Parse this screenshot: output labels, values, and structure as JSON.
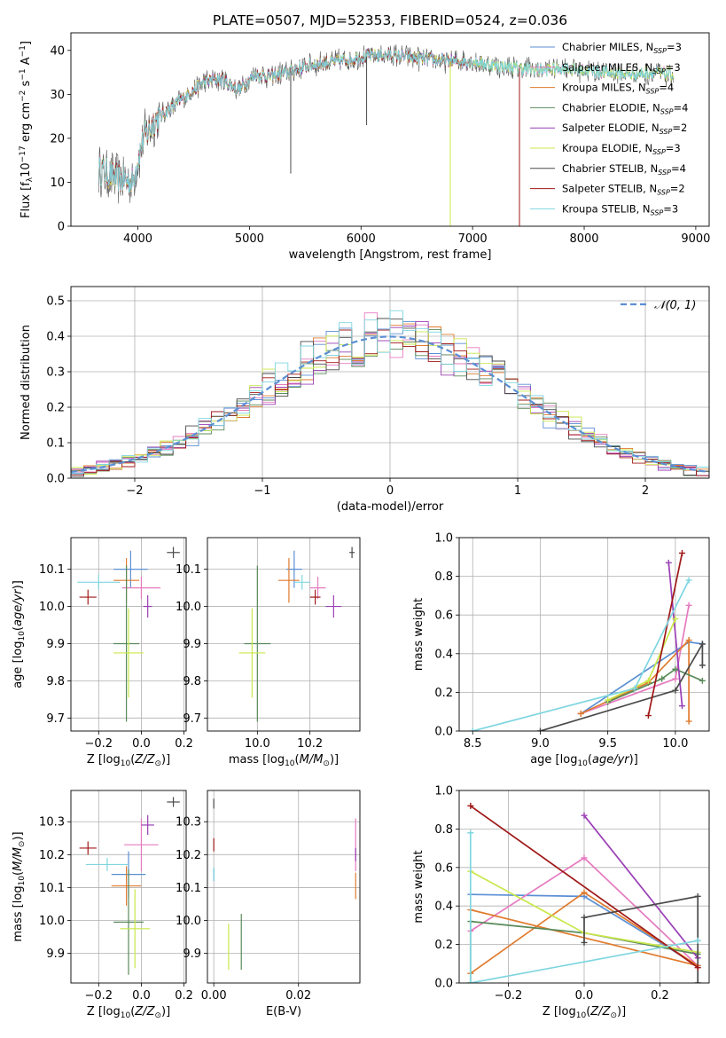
{
  "chart_data": [
    {
      "type": "line",
      "title": "PLATE=0507, MJD=52353, FIBERID=0524, z=0.036",
      "xlabel": "wavelength [Angstrom, rest frame]",
      "ylabel": "Flux [f_λ10^-17 erg cm^-2 s^-1 A^-1]",
      "xlim": [
        3400,
        9120
      ],
      "ylim": [
        0,
        44
      ],
      "xticks": [
        4000,
        5000,
        6000,
        7000,
        8000,
        9000
      ],
      "yticks": [
        0,
        10,
        20,
        30,
        40
      ],
      "grid": false,
      "legend_position": "top-right",
      "continuum": {
        "x": [
          3650,
          3800,
          3950,
          4050,
          4150,
          4300,
          4450,
          4600,
          4750,
          4900,
          5050,
          5200,
          5400,
          5600,
          5800,
          6000,
          6200,
          6400,
          6600,
          6800,
          7000,
          7200,
          7400,
          7600,
          7800,
          8000,
          8200,
          8400,
          8600,
          8800
        ],
        "y": [
          13,
          11,
          10,
          20,
          24,
          27,
          30,
          33,
          33.5,
          31,
          34.5,
          34,
          35.5,
          37,
          37.5,
          38.5,
          39,
          38.5,
          38,
          37.5,
          37.5,
          36.5,
          36,
          35.5,
          36,
          35.5,
          35,
          34.5,
          35,
          34.5
        ]
      },
      "series": [
        {
          "name": "Chabrier MILES, N_SSP=3",
          "legend_name": "Chabrier MILES, N",
          "legend_sub": "SSP",
          "legend_suffix": "=3",
          "color": "#5b8fd4"
        },
        {
          "name": "Salpeter MILES, N_SSP=3",
          "legend_name": "Salpeter MILES, N",
          "legend_sub": "SSP",
          "legend_suffix": "=3",
          "color": "#e57bc0"
        },
        {
          "name": "Kroupa MILES, N_SSP=4",
          "legend_name": "Kroupa MILES, N",
          "legend_sub": "SSP",
          "legend_suffix": "=4",
          "color": "#e07b2e"
        },
        {
          "name": "Chabrier ELODIE, N_SSP=4",
          "legend_name": "Chabrier ELODIE, N",
          "legend_sub": "SSP",
          "legend_suffix": "=4",
          "color": "#5a8a5a"
        },
        {
          "name": "Salpeter ELODIE, N_SSP=2",
          "legend_name": "Salpeter ELODIE, N",
          "legend_sub": "SSP",
          "legend_suffix": "=2",
          "color": "#9a3fb5"
        },
        {
          "name": "Kroupa ELODIE, N_SSP=3",
          "legend_name": "Kroupa ELODIE, N",
          "legend_sub": "SSP",
          "legend_suffix": "=3",
          "color": "#c9e84a"
        },
        {
          "name": "Chabrier STELIB, N_SSP=4",
          "legend_name": "Chabrier STELIB, N",
          "legend_sub": "SSP",
          "legend_suffix": "=4",
          "color": "#4a4a4a"
        },
        {
          "name": "Salpeter STELIB, N_SSP=2",
          "legend_name": "Salpeter STELIB, N",
          "legend_sub": "SSP",
          "legend_suffix": "=2",
          "color": "#a01818"
        },
        {
          "name": "Kroupa STELIB, N_SSP=3",
          "legend_name": "Kroupa STELIB, N",
          "legend_sub": "SSP",
          "legend_suffix": "=3",
          "color": "#7fd6e0"
        }
      ],
      "drops": [
        {
          "series": "Kroupa ELODIE, N_SSP=3",
          "x": 6800,
          "y": 0
        },
        {
          "series": "Salpeter STELIB, N_SSP=2",
          "x": 7420,
          "y": 0
        },
        {
          "series": "Chabrier STELIB, N_SSP=4",
          "x": 5370,
          "y": 12
        },
        {
          "series": "Chabrier STELIB, N_SSP=4",
          "x": 6050,
          "y": 23
        }
      ]
    },
    {
      "type": "histogram",
      "xlabel": "(data-model)/error",
      "ylabel": "Normed distribution",
      "xlim": [
        -2.5,
        2.5
      ],
      "ylim": [
        0,
        0.54
      ],
      "xticks": [
        -2,
        -1,
        0,
        1,
        2
      ],
      "yticks": [
        0.0,
        0.1,
        0.2,
        0.3,
        0.4,
        0.5
      ],
      "grid": true,
      "legend_position": "top-right",
      "bin_width": 0.1,
      "reference": {
        "name": "𝒩(0, 1)",
        "color": "#5b8fd4",
        "style": "dashed"
      }
    },
    {
      "type": "scatter",
      "xlabel": "Z [log10(Z/Z⊙)]",
      "ylabel": "age [log10(age/yr)]",
      "xlim": [
        -0.33,
        0.21
      ],
      "ylim": [
        9.665,
        10.185
      ],
      "xticks": [
        -0.2,
        0.0,
        0.2
      ],
      "yticks": [
        9.7,
        9.8,
        9.9,
        10.0,
        10.1
      ],
      "grid": true,
      "points": [
        {
          "series": "Chabrier MILES, N_SSP=3",
          "x": -0.05,
          "y": 10.1,
          "xerr": 0.08,
          "yerr": 0.05
        },
        {
          "series": "Salpeter MILES, N_SSP=3",
          "x": 0.0,
          "y": 10.05,
          "xerr": 0.09,
          "yerr": 0.03
        },
        {
          "series": "Kroupa MILES, N_SSP=4",
          "x": -0.07,
          "y": 10.07,
          "xerr": 0.06,
          "yerr": 0.06
        },
        {
          "series": "Chabrier ELODIE, N_SSP=4",
          "x": -0.07,
          "y": 9.9,
          "xerr": 0.06,
          "yerr": 0.21
        },
        {
          "series": "Salpeter ELODIE, N_SSP=2",
          "x": 0.03,
          "y": 10.0,
          "xerr": 0.02,
          "yerr": 0.03
        },
        {
          "series": "Kroupa ELODIE, N_SSP=3",
          "x": -0.06,
          "y": 9.875,
          "xerr": 0.07,
          "yerr": 0.12
        },
        {
          "series": "Chabrier STELIB, N_SSP=4",
          "x": 0.15,
          "y": 10.145,
          "xerr": 0.03,
          "yerr": 0.015
        },
        {
          "series": "Salpeter STELIB, N_SSP=2",
          "x": -0.25,
          "y": 10.025,
          "xerr": 0.04,
          "yerr": 0.02
        },
        {
          "series": "Kroupa STELIB, N_SSP=3",
          "x": -0.2,
          "y": 10.065,
          "xerr": 0.1,
          "yerr": 0.02
        }
      ]
    },
    {
      "type": "scatter",
      "xlabel": "mass [log10(M/M⊙)]",
      "ylabel": "",
      "xlim": [
        9.81,
        10.39
      ],
      "ylim": [
        9.665,
        10.185
      ],
      "xticks": [
        10.0,
        10.2
      ],
      "yticks": [
        9.7,
        9.8,
        9.9,
        10.0,
        10.1
      ],
      "grid": true,
      "points": [
        {
          "series": "Chabrier MILES, N_SSP=3",
          "x": 10.14,
          "y": 10.1,
          "xerr": 0.03,
          "yerr": 0.05
        },
        {
          "series": "Salpeter MILES, N_SSP=3",
          "x": 10.23,
          "y": 10.05,
          "xerr": 0.03,
          "yerr": 0.03
        },
        {
          "series": "Kroupa MILES, N_SSP=4",
          "x": 10.12,
          "y": 10.07,
          "xerr": 0.04,
          "yerr": 0.06
        },
        {
          "series": "Chabrier ELODIE, N_SSP=4",
          "x": 10.0,
          "y": 9.9,
          "xerr": 0.05,
          "yerr": 0.21
        },
        {
          "series": "Salpeter ELODIE, N_SSP=2",
          "x": 10.29,
          "y": 10.0,
          "xerr": 0.03,
          "yerr": 0.03
        },
        {
          "series": "Kroupa ELODIE, N_SSP=3",
          "x": 9.98,
          "y": 9.875,
          "xerr": 0.05,
          "yerr": 0.12
        },
        {
          "series": "Chabrier STELIB, N_SSP=4",
          "x": 10.36,
          "y": 10.145,
          "xerr": 0.01,
          "yerr": 0.015
        },
        {
          "series": "Salpeter STELIB, N_SSP=2",
          "x": 10.22,
          "y": 10.025,
          "xerr": 0.02,
          "yerr": 0.02
        },
        {
          "series": "Kroupa STELIB, N_SSP=3",
          "x": 10.17,
          "y": 10.065,
          "xerr": 0.03,
          "yerr": 0.02
        }
      ]
    },
    {
      "type": "line",
      "xlabel": "age [log10(age/yr)]",
      "ylabel": "mass weight",
      "xlim": [
        8.4,
        10.25
      ],
      "ylim": [
        0,
        1
      ],
      "xticks": [
        8.5,
        9.0,
        9.5,
        10.0
      ],
      "yticks": [
        0.0,
        0.2,
        0.4,
        0.6,
        0.8,
        1.0
      ],
      "grid": true,
      "series": [
        {
          "name": "Chabrier MILES, N_SSP=3",
          "x": [
            9.3,
            10.1,
            10.2
          ],
          "y": [
            0.09,
            0.46,
            0.45
          ]
        },
        {
          "name": "Salpeter MILES, N_SSP=3",
          "x": [
            9.3,
            10.0,
            10.1
          ],
          "y": [
            0.09,
            0.27,
            0.65
          ]
        },
        {
          "name": "Kroupa MILES, N_SSP=4",
          "x": [
            9.3,
            9.8,
            10.1,
            10.1
          ],
          "y": [
            0.09,
            0.25,
            0.47,
            0.05
          ]
        },
        {
          "name": "Chabrier ELODIE, N_SSP=4",
          "x": [
            9.5,
            9.9,
            10.0,
            10.2
          ],
          "y": [
            0.15,
            0.27,
            0.32,
            0.26
          ]
        },
        {
          "name": "Salpeter ELODIE, N_SSP=2",
          "x": [
            9.95,
            10.05
          ],
          "y": [
            0.87,
            0.13
          ]
        },
        {
          "name": "Kroupa ELODIE, N_SSP=3",
          "x": [
            9.5,
            9.8,
            10.0
          ],
          "y": [
            0.16,
            0.26,
            0.58
          ]
        },
        {
          "name": "Chabrier STELIB, N_SSP=4",
          "x": [
            9.0,
            10.0,
            10.2,
            10.2
          ],
          "y": [
            0.0,
            0.21,
            0.45,
            0.34
          ]
        },
        {
          "name": "Salpeter STELIB, N_SSP=2",
          "x": [
            9.8,
            10.05
          ],
          "y": [
            0.08,
            0.92
          ]
        },
        {
          "name": "Kroupa STELIB, N_SSP=3",
          "x": [
            8.5,
            9.7,
            10.1
          ],
          "y": [
            0.0,
            0.22,
            0.78
          ]
        }
      ]
    },
    {
      "type": "scatter",
      "xlabel": "Z [log10(Z/Z⊙)]",
      "ylabel": "mass [log10(M/M⊙)]",
      "xlim": [
        -0.33,
        0.21
      ],
      "ylim": [
        9.81,
        10.395
      ],
      "xticks": [
        -0.2,
        0.0,
        0.2
      ],
      "yticks": [
        9.9,
        10.0,
        10.1,
        10.2,
        10.3
      ],
      "grid": true,
      "points": [
        {
          "series": "Chabrier MILES, N_SSP=3",
          "x": -0.06,
          "y": 10.14,
          "xerr": 0.08,
          "yerr": 0.07
        },
        {
          "series": "Salpeter MILES, N_SSP=3",
          "x": 0.0,
          "y": 10.23,
          "xerr": 0.08,
          "yerr": 0.08
        },
        {
          "series": "Kroupa MILES, N_SSP=4",
          "x": -0.07,
          "y": 10.105,
          "xerr": 0.07,
          "yerr": 0.06
        },
        {
          "series": "Chabrier ELODIE, N_SSP=4",
          "x": -0.06,
          "y": 9.995,
          "xerr": 0.07,
          "yerr": 0.16
        },
        {
          "series": "Salpeter ELODIE, N_SSP=2",
          "x": 0.03,
          "y": 10.29,
          "xerr": 0.03,
          "yerr": 0.03
        },
        {
          "series": "Kroupa ELODIE, N_SSP=3",
          "x": -0.03,
          "y": 9.975,
          "xerr": 0.07,
          "yerr": 0.12
        },
        {
          "series": "Chabrier STELIB, N_SSP=4",
          "x": 0.15,
          "y": 10.36,
          "xerr": 0.03,
          "yerr": 0.015
        },
        {
          "series": "Salpeter STELIB, N_SSP=2",
          "x": -0.25,
          "y": 10.22,
          "xerr": 0.04,
          "yerr": 0.02
        },
        {
          "series": "Kroupa STELIB, N_SSP=3",
          "x": -0.16,
          "y": 10.17,
          "xerr": 0.1,
          "yerr": 0.02
        }
      ]
    },
    {
      "type": "scatter",
      "xlabel": "E(B-V)",
      "ylabel": "",
      "xlim": [
        -0.0015,
        0.0345
      ],
      "ylim": [
        9.81,
        10.395
      ],
      "xticks": [
        0.0,
        0.02
      ],
      "yticks": [
        9.9,
        10.0,
        10.1,
        10.2,
        10.3
      ],
      "grid": true,
      "points": [
        {
          "series": "Chabrier MILES, N_SSP=3",
          "x": 0.0,
          "y": 10.14,
          "xerr": 0,
          "yerr": 0.02
        },
        {
          "series": "Salpeter MILES, N_SSP=3",
          "x": 0.0335,
          "y": 10.23,
          "xerr": 0,
          "yerr": 0.08
        },
        {
          "series": "Kroupa MILES, N_SSP=4",
          "x": 0.0335,
          "y": 10.105,
          "xerr": 0,
          "yerr": 0.04
        },
        {
          "series": "Chabrier ELODIE, N_SSP=4",
          "x": 0.0065,
          "y": 9.935,
          "xerr": 0,
          "yerr": 0.085
        },
        {
          "series": "Salpeter ELODIE, N_SSP=2",
          "x": 0.0335,
          "y": 10.2,
          "xerr": 0,
          "yerr": 0.02
        },
        {
          "series": "Kroupa ELODIE, N_SSP=3",
          "x": 0.0035,
          "y": 9.92,
          "xerr": 0,
          "yerr": 0.07
        },
        {
          "series": "Chabrier STELIB, N_SSP=4",
          "x": 0.0,
          "y": 10.355,
          "xerr": 0,
          "yerr": 0.015
        },
        {
          "series": "Salpeter STELIB, N_SSP=2",
          "x": 0.0,
          "y": 10.23,
          "xerr": 0,
          "yerr": 0.02
        },
        {
          "series": "Kroupa STELIB, N_SSP=3",
          "x": 0.0,
          "y": 10.14,
          "xerr": 0,
          "yerr": 0.02
        }
      ]
    },
    {
      "type": "line",
      "xlabel": "Z [log10(Z/Z⊙)]",
      "ylabel": "mass weight",
      "xlim": [
        -0.33,
        0.33
      ],
      "ylim": [
        0,
        1
      ],
      "xticks": [
        -0.2,
        0.0,
        0.2
      ],
      "yticks": [
        0.0,
        0.2,
        0.4,
        0.6,
        0.8,
        1.0
      ],
      "grid": true,
      "series": [
        {
          "name": "Chabrier MILES, N_SSP=3",
          "x": [
            -0.3,
            0.0,
            0.3
          ],
          "y": [
            0.46,
            0.45,
            0.09
          ]
        },
        {
          "name": "Salpeter MILES, N_SSP=3",
          "x": [
            -0.3,
            0.0,
            0.3
          ],
          "y": [
            0.27,
            0.65,
            0.09
          ]
        },
        {
          "name": "Kroupa MILES, N_SSP=4",
          "x": [
            -0.3,
            0.0,
            0.3,
            -0.3
          ],
          "y": [
            0.05,
            0.47,
            0.09,
            0.38
          ]
        },
        {
          "name": "Chabrier ELODIE, N_SSP=4",
          "x": [
            -0.3,
            -0.3,
            0.0,
            0.3
          ],
          "y": [
            0.0,
            0.32,
            0.26,
            0.15
          ]
        },
        {
          "name": "Salpeter ELODIE, N_SSP=2",
          "x": [
            0.0,
            0.3
          ],
          "y": [
            0.87,
            0.13
          ]
        },
        {
          "name": "Kroupa ELODIE, N_SSP=3",
          "x": [
            -0.3,
            0.0,
            0.3
          ],
          "y": [
            0.58,
            0.26,
            0.16
          ]
        },
        {
          "name": "Chabrier STELIB, N_SSP=4",
          "x": [
            0.0,
            0.0,
            0.3,
            0.3
          ],
          "y": [
            0.21,
            0.34,
            0.45,
            0.0
          ]
        },
        {
          "name": "Salpeter STELIB, N_SSP=2",
          "x": [
            -0.3,
            0.3
          ],
          "y": [
            0.92,
            0.08
          ]
        },
        {
          "name": "Kroupa STELIB, N_SSP=3",
          "x": [
            -0.3,
            -0.3,
            0.3
          ],
          "y": [
            0.78,
            0.0,
            0.22
          ]
        }
      ]
    }
  ]
}
